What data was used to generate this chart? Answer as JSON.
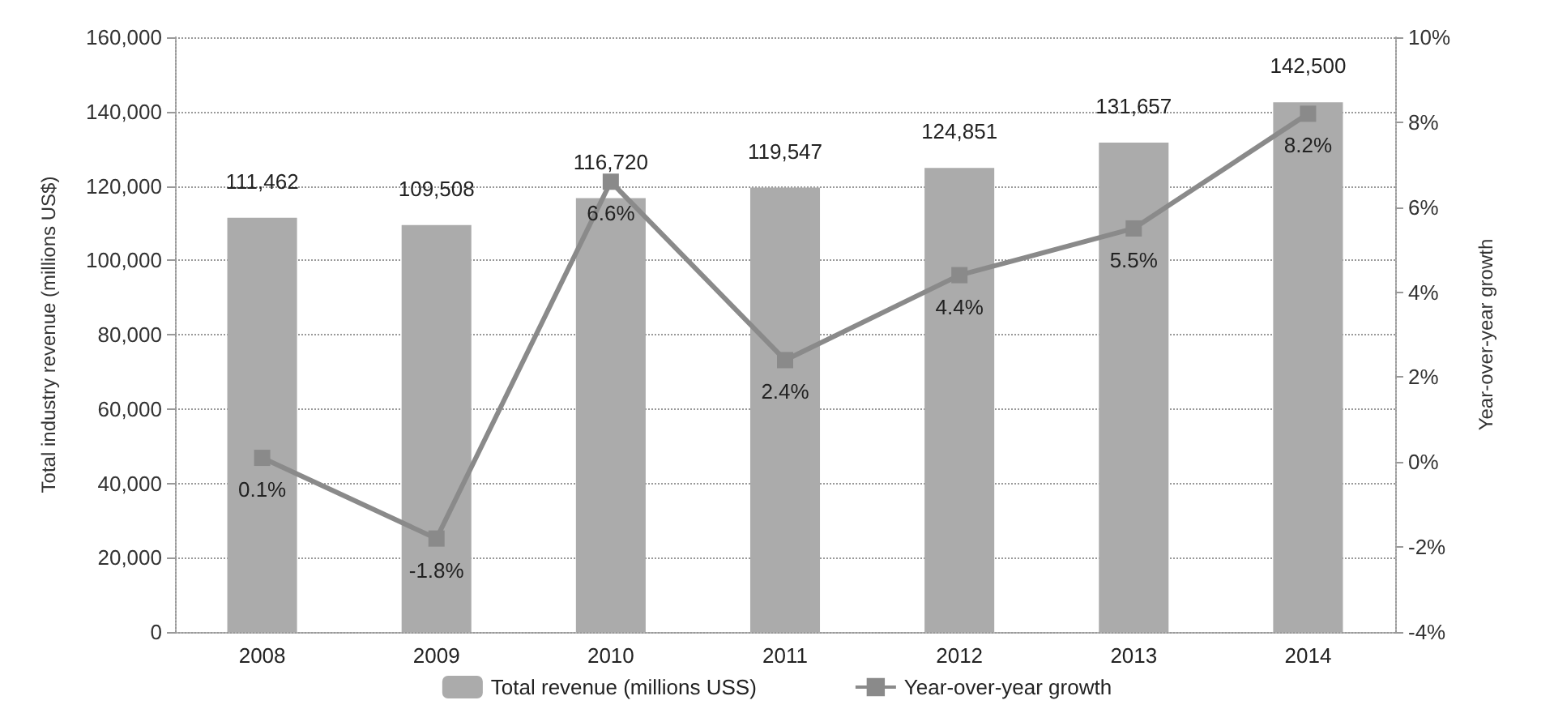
{
  "chart_data": {
    "type": "bar",
    "categories": [
      "2008",
      "2009",
      "2010",
      "2011",
      "2012",
      "2013",
      "2014"
    ],
    "ylabel": "Total industry revenue (millions US$)",
    "y2label": "Year-over-year growth",
    "series": [
      {
        "name": "Total revenue (millions USS)",
        "color": "#ababab",
        "values": [
          111462,
          109508,
          116720,
          119547,
          124851,
          131657,
          142500
        ],
        "value_labels": [
          "111,462",
          "109,508",
          "116,720",
          "119,547",
          "124,851",
          "131,657",
          "142,500"
        ]
      },
      {
        "name": "Year-over-year growth",
        "type": "line",
        "axis": "y2",
        "color": "#8a8a8a",
        "values": [
          0.1,
          -1.8,
          6.6,
          2.4,
          4.4,
          5.5,
          8.2
        ],
        "value_labels": [
          "0.1%",
          "-1.8%",
          "6.6%",
          "2.4%",
          "4.4%",
          "5.5%",
          "8.2%"
        ]
      }
    ],
    "ylim": [
      0,
      160000
    ],
    "yticks": [
      {
        "value": 0,
        "label": "0"
      },
      {
        "value": 20000,
        "label": "20,000"
      },
      {
        "value": 40000,
        "label": "40,000"
      },
      {
        "value": 60000,
        "label": "60,000"
      },
      {
        "value": 80000,
        "label": "80,000"
      },
      {
        "value": 100000,
        "label": "100,000"
      },
      {
        "value": 120000,
        "label": "120,000"
      },
      {
        "value": 140000,
        "label": "140,000"
      },
      {
        "value": 160000,
        "label": "160,000"
      }
    ],
    "y2lim": [
      -4,
      10
    ],
    "y2ticks": [
      {
        "value": -4,
        "label": "-4%"
      },
      {
        "value": -2,
        "label": "-2%"
      },
      {
        "value": 0,
        "label": "0%"
      },
      {
        "value": 2,
        "label": "2%"
      },
      {
        "value": 4,
        "label": "4%"
      },
      {
        "value": 6,
        "label": "6%"
      },
      {
        "value": 8,
        "label": "8%"
      },
      {
        "value": 10,
        "label": "10%"
      }
    ],
    "grid": "y",
    "legend": "bottom",
    "marker": "square",
    "line_style": "solid"
  }
}
